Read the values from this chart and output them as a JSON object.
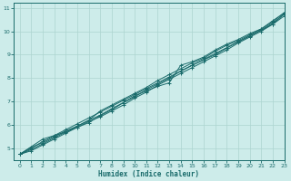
{
  "bg_color": "#cdecea",
  "grid_color": "#add4d0",
  "line_color": "#1a6b6b",
  "marker_color": "#1a6b6b",
  "xlabel": "Humidex (Indice chaleur)",
  "xlim": [
    -0.5,
    23
  ],
  "ylim": [
    4.5,
    11.2
  ],
  "xticks": [
    0,
    1,
    2,
    3,
    4,
    5,
    6,
    7,
    8,
    9,
    10,
    11,
    12,
    13,
    14,
    15,
    16,
    17,
    18,
    19,
    20,
    21,
    22,
    23
  ],
  "yticks": [
    5,
    6,
    7,
    8,
    9,
    10,
    11
  ],
  "series": [
    [
      0,
      4.75
    ],
    [
      1,
      5.0
    ],
    [
      2,
      5.3
    ],
    [
      3,
      5.55
    ],
    [
      4,
      5.8
    ],
    [
      5,
      6.05
    ],
    [
      6,
      6.3
    ],
    [
      7,
      6.55
    ],
    [
      8,
      6.8
    ],
    [
      9,
      7.05
    ],
    [
      10,
      7.3
    ],
    [
      11,
      7.55
    ],
    [
      12,
      7.8
    ],
    [
      13,
      8.05
    ],
    [
      14,
      8.3
    ],
    [
      15,
      8.55
    ],
    [
      16,
      8.8
    ],
    [
      17,
      9.05
    ],
    [
      18,
      9.3
    ],
    [
      19,
      9.55
    ],
    [
      20,
      9.8
    ],
    [
      21,
      10.05
    ],
    [
      22,
      10.3
    ],
    [
      23,
      10.75
    ]
  ],
  "series2": [
    [
      0,
      4.75
    ],
    [
      1,
      5.05
    ],
    [
      2,
      5.25
    ],
    [
      3,
      5.5
    ],
    [
      4,
      5.75
    ],
    [
      5,
      5.95
    ],
    [
      6,
      6.2
    ],
    [
      7,
      6.6
    ],
    [
      8,
      6.85
    ],
    [
      9,
      7.1
    ],
    [
      10,
      7.35
    ],
    [
      11,
      7.6
    ],
    [
      12,
      7.9
    ],
    [
      13,
      8.15
    ],
    [
      14,
      8.4
    ],
    [
      15,
      8.65
    ],
    [
      16,
      8.85
    ],
    [
      17,
      9.15
    ],
    [
      18,
      9.4
    ],
    [
      19,
      9.6
    ],
    [
      20,
      9.85
    ],
    [
      21,
      10.1
    ],
    [
      22,
      10.4
    ],
    [
      23,
      10.8
    ]
  ],
  "series3": [
    [
      0,
      4.75
    ],
    [
      2,
      5.4
    ],
    [
      3,
      5.55
    ],
    [
      4,
      5.7
    ],
    [
      5,
      5.9
    ],
    [
      6,
      6.1
    ],
    [
      7,
      6.4
    ],
    [
      8,
      6.65
    ],
    [
      9,
      6.95
    ],
    [
      10,
      7.25
    ],
    [
      11,
      7.45
    ],
    [
      12,
      7.65
    ],
    [
      13,
      7.8
    ],
    [
      14,
      8.55
    ],
    [
      15,
      8.7
    ],
    [
      16,
      8.9
    ],
    [
      17,
      9.2
    ],
    [
      18,
      9.45
    ],
    [
      19,
      9.65
    ],
    [
      20,
      9.9
    ],
    [
      21,
      10.1
    ],
    [
      22,
      10.45
    ],
    [
      23,
      10.78
    ]
  ],
  "series4": [
    [
      0,
      4.75
    ],
    [
      1,
      4.9
    ],
    [
      2,
      5.15
    ],
    [
      3,
      5.4
    ],
    [
      4,
      5.65
    ],
    [
      5,
      5.9
    ],
    [
      6,
      6.15
    ],
    [
      7,
      6.35
    ],
    [
      8,
      6.6
    ],
    [
      9,
      6.85
    ],
    [
      10,
      7.15
    ],
    [
      11,
      7.4
    ],
    [
      12,
      7.7
    ],
    [
      13,
      7.95
    ],
    [
      14,
      8.2
    ],
    [
      15,
      8.45
    ],
    [
      16,
      8.7
    ],
    [
      17,
      8.95
    ],
    [
      18,
      9.2
    ],
    [
      19,
      9.5
    ],
    [
      20,
      9.75
    ],
    [
      21,
      10.0
    ],
    [
      22,
      10.3
    ],
    [
      23,
      10.65
    ]
  ],
  "series5": [
    [
      0,
      4.75
    ],
    [
      1,
      4.95
    ],
    [
      2,
      5.2
    ],
    [
      3,
      5.45
    ],
    [
      4,
      5.7
    ],
    [
      5,
      5.95
    ],
    [
      6,
      6.2
    ],
    [
      7,
      6.42
    ],
    [
      8,
      6.7
    ],
    [
      9,
      6.95
    ],
    [
      10,
      7.2
    ],
    [
      11,
      7.5
    ],
    [
      12,
      7.75
    ],
    [
      13,
      8.0
    ],
    [
      14,
      8.3
    ],
    [
      15,
      8.55
    ],
    [
      16,
      8.78
    ],
    [
      17,
      9.0
    ],
    [
      18,
      9.28
    ],
    [
      19,
      9.55
    ],
    [
      20,
      9.8
    ],
    [
      21,
      10.05
    ],
    [
      22,
      10.35
    ],
    [
      23,
      10.72
    ]
  ]
}
